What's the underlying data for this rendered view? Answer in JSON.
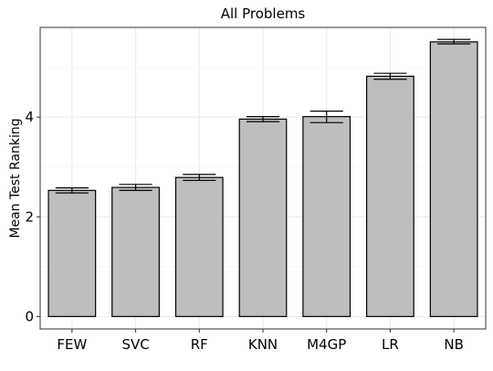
{
  "chart_data": {
    "type": "bar",
    "title": "All Problems",
    "xlabel": "",
    "ylabel": "Mean Test Ranking",
    "categories": [
      "FEW",
      "SVC",
      "RF",
      "KNN",
      "M4GP",
      "LR",
      "NB"
    ],
    "values": [
      2.53,
      2.59,
      2.79,
      3.96,
      4.01,
      4.82,
      5.51
    ],
    "error_low": [
      2.48,
      2.53,
      2.73,
      3.91,
      3.89,
      4.76,
      5.47
    ],
    "error_high": [
      2.58,
      2.65,
      2.85,
      4.01,
      4.12,
      4.88,
      5.56
    ],
    "ylim": [
      -0.25,
      5.8
    ],
    "yticks": [
      0,
      2,
      4
    ],
    "grid": true,
    "legend": "none",
    "colors": {
      "bar_fill": "#bebebe",
      "bar_stroke": "#000000",
      "grid_major": "#ebebeb",
      "grid_minor": "#f5f5f5",
      "panel_border": "#333333"
    }
  }
}
